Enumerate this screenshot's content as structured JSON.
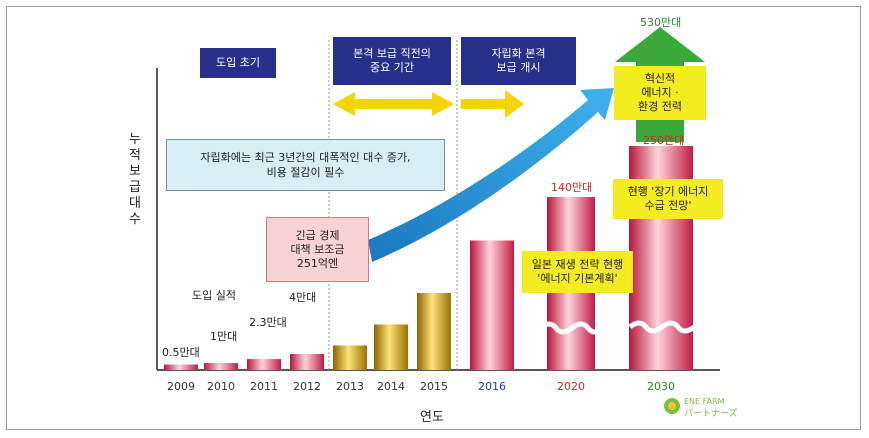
{
  "chart_data": {
    "type": "bar",
    "ylabel": "누적보급대수",
    "xlabel": "연도",
    "categories": [
      "2009",
      "2010",
      "2011",
      "2012",
      "2013",
      "2014",
      "2015",
      "2016",
      "2020",
      "2030"
    ],
    "values": [
      0.5,
      1,
      2.3,
      4,
      7,
      13,
      22,
      37,
      140,
      250
    ],
    "category_colors": [
      "#e33560",
      "#e33560",
      "#e33560",
      "#e33560",
      "#c99a00",
      "#c99a00",
      "#c99a00",
      "#e33560",
      "#e33560",
      "#e33560"
    ],
    "tick_colors": [
      "#333333",
      "#333333",
      "#333333",
      "#333333",
      "#333333",
      "#333333",
      "#333333",
      "#2d3a9a",
      "#d0271f",
      "#2a8a2a"
    ],
    "value_labels": {
      "2009": "0.5만대",
      "2010": "1만대",
      "2011": "2.3만대",
      "2012": "4만대",
      "2020": "140만대",
      "2030": "250만대"
    },
    "target_label": "530만대",
    "annotations": {
      "doip_silj": "도입 실적"
    },
    "phases": [
      "도입 초기",
      "본격 보급 직전의 중요 기간",
      "자립화 본격 보급 개시"
    ]
  },
  "phase_boxes": {
    "early": "도입 초기",
    "pre_line1": "본격 보급 직전의",
    "pre_line2": "중요 기간",
    "self_line1": "자립화 본격",
    "self_line2": "보급 개시"
  },
  "notes": {
    "self_line1": "자립화에는 최근 3년간의 대폭적인 대수 증가,",
    "self_line2": "비용 절감이 필수",
    "subsidy_line1": "긴급 경제",
    "subsidy_line2": "대책 보조금",
    "subsidy_line3": "251억엔",
    "strategy_line1": "일본 재생 전략 현행",
    "strategy_line2": "'에너지 기본계획'",
    "supply_line1": "현행 '장기 에너지",
    "supply_line2": "수급 전망'",
    "innov_line1": "혁신적",
    "innov_line2": "에너지 ·",
    "innov_line3": "환경 전력"
  },
  "logo": {
    "line1": "ENE FARM",
    "line2": "パートナーズ"
  },
  "colors": {
    "pink_bar": "#e33560",
    "gold_bar": "#c99a00",
    "arrow_blue": "#2a9ad8",
    "arrow_yellow": "#f5d400",
    "arrow_green": "#3aa83a",
    "navy": "#27308a"
  }
}
